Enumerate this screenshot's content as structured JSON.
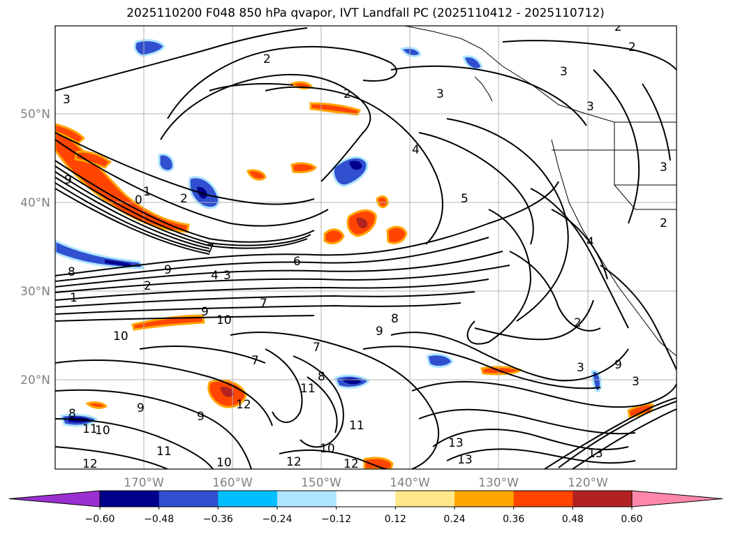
{
  "title": "2025110200 F048 850 hPa qvapor, IVT Landfall PC (2025110412 - 2025110712)",
  "map": {
    "lon_ticks": [
      "170°W",
      "160°W",
      "150°W",
      "140°W",
      "130°W",
      "120°W"
    ],
    "lat_ticks": [
      "50°N",
      "40°N",
      "30°N",
      "20°N"
    ],
    "lon_range": [
      -180,
      -110
    ],
    "lat_range": [
      10,
      60
    ],
    "gridlines": true
  },
  "contour_labels": [
    "2",
    "2",
    "2",
    "3",
    "3",
    "3",
    "3",
    "2",
    "1",
    "0",
    "2",
    "3",
    "4",
    "5",
    "4",
    "9",
    "8",
    "9",
    "2",
    "1",
    "7",
    "6",
    "4",
    "3",
    "7",
    "9",
    "10",
    "10",
    "9",
    "8",
    "7",
    "7",
    "8",
    "11",
    "12",
    "9",
    "8",
    "11",
    "9",
    "11",
    "10",
    "13",
    "13",
    "12",
    "12",
    "10",
    "10",
    "11",
    "12",
    "2",
    "3",
    "9",
    "3",
    "13",
    "2"
  ],
  "colorbar": {
    "ticks": [
      "−0.60",
      "−0.48",
      "−0.36",
      "−0.24",
      "−0.12",
      "0.12",
      "0.24",
      "0.36",
      "0.48",
      "0.60"
    ],
    "colors": {
      "under": "#9b30d0",
      "bins": [
        "#00008b",
        "#3050d0",
        "#00bfff",
        "#aee4ff",
        "#ffffff",
        "#ffe88a",
        "#ffa500",
        "#ff4500",
        "#b22222"
      ],
      "over": "#ff88aa"
    }
  }
}
